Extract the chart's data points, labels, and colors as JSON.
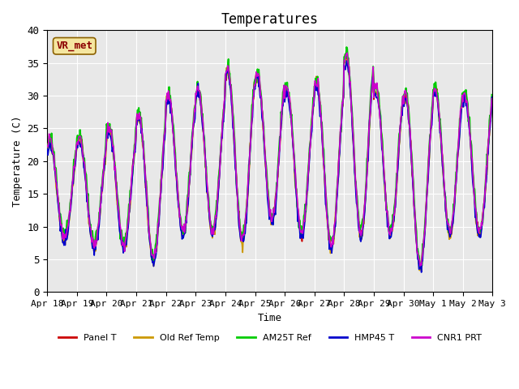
{
  "title": "Temperatures",
  "xlabel": "Time",
  "ylabel": "Temperature (C)",
  "ylim": [
    0,
    40
  ],
  "annotation_text": "VR_met",
  "series": {
    "Panel T": {
      "color": "#cc0000",
      "lw": 1.2
    },
    "Old Ref Temp": {
      "color": "#cc9900",
      "lw": 1.2
    },
    "AM25T Ref": {
      "color": "#00cc00",
      "lw": 1.5
    },
    "HMP45 T": {
      "color": "#0000cc",
      "lw": 1.2
    },
    "CNR1 PRT": {
      "color": "#cc00cc",
      "lw": 1.2
    }
  },
  "xtick_labels": [
    "Apr 18",
    "Apr 19",
    "Apr 20",
    "Apr 21",
    "Apr 22",
    "Apr 23",
    "Apr 24",
    "Apr 25",
    "Apr 26",
    "Apr 27",
    "Apr 28",
    "Apr 29",
    "Apr 30",
    "May 1",
    "May 2",
    "May 3"
  ],
  "bg_color": "#e8e8e8",
  "fig_color": "#ffffff",
  "font": "monospace"
}
